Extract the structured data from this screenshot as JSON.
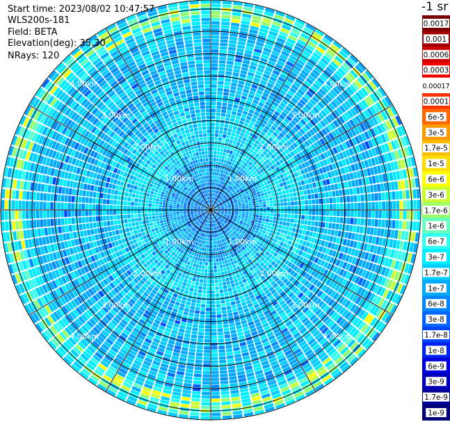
{
  "header": {
    "start_time": "Start time: 2023/08/02 10:47:57",
    "instrument": "WLS200s-181",
    "field": "Field: BETA",
    "elevation": "Elevation(deg): 35.30",
    "nrays": "NRays: 120"
  },
  "colorbar": {
    "unit": "-1 sr",
    "labels": [
      "0.0017",
      "0.001",
      "0.0006",
      "0.0003",
      "0.00017",
      "0.0001",
      "6e-5",
      "3e-5",
      "1.7e-5",
      "1e-5",
      "6e-6",
      "3e-6",
      "1.7e-6",
      "1e-6",
      "6e-7",
      "3e-7",
      "1.7e-7",
      "1e-7",
      "6e-8",
      "3e-8",
      "1.7e-8",
      "1e-8",
      "6e-9",
      "3e-9",
      "1.7e-9",
      "1e-9"
    ],
    "colors": [
      "#7a0000",
      "#a00000",
      "#c80000",
      "#ee0000",
      "#ffffff",
      "#ff3300",
      "#ff6600",
      "#ff9900",
      "#ffbb00",
      "#ffdd00",
      "#ffff00",
      "#ccff33",
      "#99ff66",
      "#66ffbb",
      "#33ffee",
      "#00eeff",
      "#00ccff",
      "#00aaff",
      "#0088ff",
      "#0066ff",
      "#0044ff",
      "#0022ee",
      "#0000dd",
      "#0000bb",
      "#000099",
      "#000077"
    ]
  },
  "chart_data": {
    "type": "heatmap",
    "projection": "PPI (polar)",
    "n_rays": 120,
    "max_range_km": 4.7,
    "range_rings_km": [
      1,
      2,
      3,
      4
    ],
    "range_labels": [
      "1.00km",
      "2.00km",
      "3.00km",
      "4.00km"
    ],
    "spoke_interval_deg": 30,
    "field": "BETA",
    "color_scale": "log",
    "value_range": [
      1e-09,
      0.0017
    ],
    "description_of_field": "Mostly 1e-7 to 6e-7 (cyan/light blue) across the scan, lower values near the center, higher values (up to ~1.7e-5) in a ring near 4.3-4.6 km range"
  }
}
